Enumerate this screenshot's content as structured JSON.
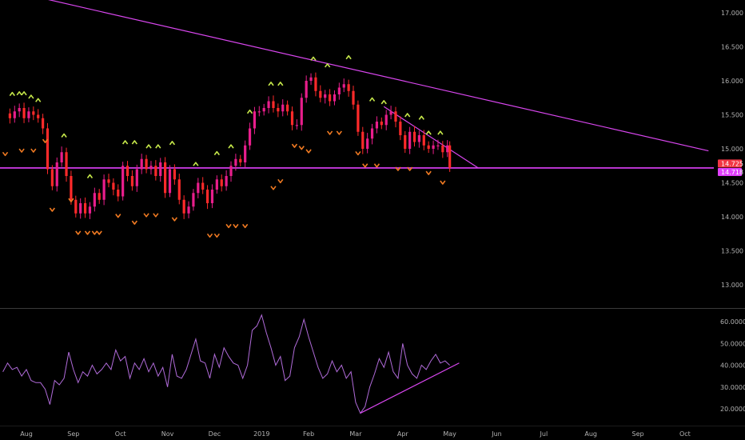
{
  "chart_data": {
    "type": "candlestick",
    "price_axis": {
      "ticks": [
        "17.000",
        "16.500",
        "16.000",
        "15.500",
        "15.000",
        "14.500",
        "14.000",
        "13.500",
        "13.000"
      ],
      "tick_values": [
        17.0,
        16.5,
        16.0,
        15.5,
        15.0,
        14.5,
        14.0,
        13.5,
        13.0
      ],
      "range": [
        12.62,
        17.15
      ]
    },
    "oscillator_axis": {
      "ticks": [
        "60.0000",
        "50.0000",
        "40.0000",
        "30.0000",
        "20.0000"
      ],
      "tick_values": [
        60,
        50,
        40,
        30,
        20
      ],
      "range": [
        14,
        64
      ]
    },
    "time_axis": {
      "labels": [
        "Aug",
        "Sep",
        "Oct",
        "Nov",
        "Dec",
        "2019",
        "Feb",
        "Mar",
        "Apr",
        "May",
        "Jun",
        "Jul",
        "Aug",
        "Sep",
        "Oct"
      ],
      "positions": [
        0,
        1,
        2,
        3,
        4,
        5,
        6,
        7,
        8,
        9,
        10,
        11,
        12,
        13,
        14
      ]
    },
    "price_tags": [
      {
        "label": "14.725",
        "value": 14.725,
        "color": "#f23645"
      },
      {
        "label": "14.718",
        "value": 14.718,
        "color": "#e040fb"
      }
    ],
    "horizontal_line": {
      "value": 14.718,
      "color": "#e040fb"
    },
    "price_series": [
      {
        "t": -0.45,
        "c": 15.52
      },
      {
        "t": -0.35,
        "c": 15.45
      },
      {
        "t": -0.25,
        "c": 15.55
      },
      {
        "t": -0.15,
        "c": 15.6
      },
      {
        "t": -0.05,
        "c": 15.45
      },
      {
        "t": 0.05,
        "c": 15.55
      },
      {
        "t": 0.15,
        "c": 15.5
      },
      {
        "t": 0.25,
        "c": 15.45
      },
      {
        "t": 0.35,
        "c": 15.3
      },
      {
        "t": 0.45,
        "c": 14.7
      },
      {
        "t": 0.55,
        "c": 14.45
      },
      {
        "t": 0.65,
        "c": 14.8
      },
      {
        "t": 0.75,
        "c": 14.95
      },
      {
        "t": 0.85,
        "c": 14.6
      },
      {
        "t": 0.95,
        "c": 14.25
      },
      {
        "t": 1.05,
        "c": 14.05
      },
      {
        "t": 1.15,
        "c": 14.2
      },
      {
        "t": 1.25,
        "c": 14.05
      },
      {
        "t": 1.35,
        "c": 14.15
      },
      {
        "t": 1.45,
        "c": 14.35
      },
      {
        "t": 1.55,
        "c": 14.25
      },
      {
        "t": 1.65,
        "c": 14.55
      },
      {
        "t": 1.75,
        "c": 14.5
      },
      {
        "t": 1.85,
        "c": 14.4
      },
      {
        "t": 1.95,
        "c": 14.3
      },
      {
        "t": 2.05,
        "c": 14.75
      },
      {
        "t": 2.15,
        "c": 14.6
      },
      {
        "t": 2.25,
        "c": 14.45
      },
      {
        "t": 2.35,
        "c": 14.7
      },
      {
        "t": 2.45,
        "c": 14.85
      },
      {
        "t": 2.55,
        "c": 14.7
      },
      {
        "t": 2.65,
        "c": 14.75
      },
      {
        "t": 2.75,
        "c": 14.6
      },
      {
        "t": 2.85,
        "c": 14.8
      },
      {
        "t": 2.95,
        "c": 14.35
      },
      {
        "t": 3.05,
        "c": 14.7
      },
      {
        "t": 3.15,
        "c": 14.55
      },
      {
        "t": 3.25,
        "c": 14.25
      },
      {
        "t": 3.35,
        "c": 14.05
      },
      {
        "t": 3.45,
        "c": 14.15
      },
      {
        "t": 3.55,
        "c": 14.35
      },
      {
        "t": 3.65,
        "c": 14.5
      },
      {
        "t": 3.75,
        "c": 14.4
      },
      {
        "t": 3.85,
        "c": 14.2
      },
      {
        "t": 3.95,
        "c": 14.4
      },
      {
        "t": 4.05,
        "c": 14.55
      },
      {
        "t": 4.15,
        "c": 14.45
      },
      {
        "t": 4.25,
        "c": 14.6
      },
      {
        "t": 4.35,
        "c": 14.75
      },
      {
        "t": 4.45,
        "c": 14.85
      },
      {
        "t": 4.55,
        "c": 14.8
      },
      {
        "t": 4.65,
        "c": 15.05
      },
      {
        "t": 4.75,
        "c": 15.3
      },
      {
        "t": 4.85,
        "c": 15.55
      },
      {
        "t": 4.95,
        "c": 15.55
      },
      {
        "t": 5.05,
        "c": 15.6
      },
      {
        "t": 5.15,
        "c": 15.7
      },
      {
        "t": 5.25,
        "c": 15.6
      },
      {
        "t": 5.35,
        "c": 15.55
      },
      {
        "t": 5.45,
        "c": 15.65
      },
      {
        "t": 5.55,
        "c": 15.55
      },
      {
        "t": 5.65,
        "c": 15.35
      },
      {
        "t": 5.75,
        "c": 15.35
      },
      {
        "t": 5.85,
        "c": 15.75
      },
      {
        "t": 5.95,
        "c": 16.0
      },
      {
        "t": 6.05,
        "c": 16.05
      },
      {
        "t": 6.15,
        "c": 15.85
      },
      {
        "t": 6.25,
        "c": 15.75
      },
      {
        "t": 6.35,
        "c": 15.8
      },
      {
        "t": 6.45,
        "c": 15.7
      },
      {
        "t": 6.55,
        "c": 15.8
      },
      {
        "t": 6.65,
        "c": 15.9
      },
      {
        "t": 6.75,
        "c": 15.95
      },
      {
        "t": 6.85,
        "c": 15.85
      },
      {
        "t": 6.95,
        "c": 15.65
      },
      {
        "t": 7.05,
        "c": 15.25
      },
      {
        "t": 7.15,
        "c": 15.0
      },
      {
        "t": 7.25,
        "c": 15.15
      },
      {
        "t": 7.35,
        "c": 15.3
      },
      {
        "t": 7.45,
        "c": 15.4
      },
      {
        "t": 7.55,
        "c": 15.35
      },
      {
        "t": 7.65,
        "c": 15.5
      },
      {
        "t": 7.75,
        "c": 15.55
      },
      {
        "t": 7.85,
        "c": 15.4
      },
      {
        "t": 7.95,
        "c": 15.2
      },
      {
        "t": 8.05,
        "c": 15.0
      },
      {
        "t": 8.15,
        "c": 15.25
      },
      {
        "t": 8.25,
        "c": 15.1
      },
      {
        "t": 8.35,
        "c": 15.2
      },
      {
        "t": 8.45,
        "c": 15.05
      },
      {
        "t": 8.55,
        "c": 15.0
      },
      {
        "t": 8.65,
        "c": 15.05
      },
      {
        "t": 8.75,
        "c": 15.05
      },
      {
        "t": 8.85,
        "c": 14.95
      },
      {
        "t": 8.95,
        "c": 15.05
      },
      {
        "t": 9.0,
        "c": 14.72
      }
    ],
    "oscillator_series": [
      {
        "t": -0.5,
        "v": 37
      },
      {
        "t": -0.4,
        "v": 41
      },
      {
        "t": -0.3,
        "v": 38
      },
      {
        "t": -0.2,
        "v": 39
      },
      {
        "t": -0.1,
        "v": 35
      },
      {
        "t": 0.0,
        "v": 38
      },
      {
        "t": 0.1,
        "v": 33
      },
      {
        "t": 0.2,
        "v": 32
      },
      {
        "t": 0.3,
        "v": 32
      },
      {
        "t": 0.4,
        "v": 29
      },
      {
        "t": 0.5,
        "v": 22
      },
      {
        "t": 0.6,
        "v": 33
      },
      {
        "t": 0.7,
        "v": 31
      },
      {
        "t": 0.8,
        "v": 34
      },
      {
        "t": 0.9,
        "v": 46
      },
      {
        "t": 1.0,
        "v": 38
      },
      {
        "t": 1.1,
        "v": 32
      },
      {
        "t": 1.2,
        "v": 37
      },
      {
        "t": 1.3,
        "v": 35
      },
      {
        "t": 1.4,
        "v": 40
      },
      {
        "t": 1.5,
        "v": 36
      },
      {
        "t": 1.6,
        "v": 38
      },
      {
        "t": 1.7,
        "v": 41
      },
      {
        "t": 1.8,
        "v": 38
      },
      {
        "t": 1.9,
        "v": 47
      },
      {
        "t": 2.0,
        "v": 42
      },
      {
        "t": 2.1,
        "v": 44
      },
      {
        "t": 2.2,
        "v": 34
      },
      {
        "t": 2.3,
        "v": 41
      },
      {
        "t": 2.4,
        "v": 38
      },
      {
        "t": 2.5,
        "v": 43
      },
      {
        "t": 2.6,
        "v": 37
      },
      {
        "t": 2.7,
        "v": 41
      },
      {
        "t": 2.8,
        "v": 35
      },
      {
        "t": 2.9,
        "v": 39
      },
      {
        "t": 3.0,
        "v": 30
      },
      {
        "t": 3.1,
        "v": 45
      },
      {
        "t": 3.2,
        "v": 35
      },
      {
        "t": 3.3,
        "v": 34
      },
      {
        "t": 3.4,
        "v": 38
      },
      {
        "t": 3.5,
        "v": 45
      },
      {
        "t": 3.6,
        "v": 52
      },
      {
        "t": 3.7,
        "v": 42
      },
      {
        "t": 3.8,
        "v": 41
      },
      {
        "t": 3.9,
        "v": 34
      },
      {
        "t": 4.0,
        "v": 45
      },
      {
        "t": 4.1,
        "v": 39
      },
      {
        "t": 4.2,
        "v": 48
      },
      {
        "t": 4.3,
        "v": 44
      },
      {
        "t": 4.4,
        "v": 41
      },
      {
        "t": 4.5,
        "v": 40
      },
      {
        "t": 4.6,
        "v": 34
      },
      {
        "t": 4.7,
        "v": 40
      },
      {
        "t": 4.8,
        "v": 56
      },
      {
        "t": 4.9,
        "v": 58
      },
      {
        "t": 5.0,
        "v": 63
      },
      {
        "t": 5.1,
        "v": 55
      },
      {
        "t": 5.2,
        "v": 48
      },
      {
        "t": 5.3,
        "v": 40
      },
      {
        "t": 5.4,
        "v": 44
      },
      {
        "t": 5.5,
        "v": 33
      },
      {
        "t": 5.6,
        "v": 35
      },
      {
        "t": 5.7,
        "v": 48
      },
      {
        "t": 5.8,
        "v": 53
      },
      {
        "t": 5.9,
        "v": 61
      },
      {
        "t": 6.0,
        "v": 53
      },
      {
        "t": 6.1,
        "v": 46
      },
      {
        "t": 6.2,
        "v": 39
      },
      {
        "t": 6.3,
        "v": 34
      },
      {
        "t": 6.4,
        "v": 36
      },
      {
        "t": 6.5,
        "v": 42
      },
      {
        "t": 6.6,
        "v": 37
      },
      {
        "t": 6.7,
        "v": 40
      },
      {
        "t": 6.8,
        "v": 34
      },
      {
        "t": 6.9,
        "v": 37
      },
      {
        "t": 7.0,
        "v": 23
      },
      {
        "t": 7.1,
        "v": 18
      },
      {
        "t": 7.2,
        "v": 21
      },
      {
        "t": 7.3,
        "v": 30
      },
      {
        "t": 7.4,
        "v": 36
      },
      {
        "t": 7.5,
        "v": 43
      },
      {
        "t": 7.6,
        "v": 39
      },
      {
        "t": 7.7,
        "v": 46
      },
      {
        "t": 7.8,
        "v": 37
      },
      {
        "t": 7.9,
        "v": 34
      },
      {
        "t": 8.0,
        "v": 50
      },
      {
        "t": 8.1,
        "v": 40
      },
      {
        "t": 8.2,
        "v": 36
      },
      {
        "t": 8.3,
        "v": 34
      },
      {
        "t": 8.4,
        "v": 40
      },
      {
        "t": 8.5,
        "v": 38
      },
      {
        "t": 8.6,
        "v": 42
      },
      {
        "t": 8.7,
        "v": 45
      },
      {
        "t": 8.8,
        "v": 41
      },
      {
        "t": 8.9,
        "v": 42
      },
      {
        "t": 9.0,
        "v": 40
      }
    ],
    "up_markers": [
      {
        "t": -0.3,
        "v": 15.81
      },
      {
        "t": -0.15,
        "v": 15.82
      },
      {
        "t": -0.05,
        "v": 15.82
      },
      {
        "t": 0.1,
        "v": 15.77
      },
      {
        "t": 0.25,
        "v": 15.72
      },
      {
        "t": 0.8,
        "v": 15.2
      },
      {
        "t": 1.35,
        "v": 14.6
      },
      {
        "t": 2.1,
        "v": 15.1
      },
      {
        "t": 2.3,
        "v": 15.1
      },
      {
        "t": 2.6,
        "v": 15.04
      },
      {
        "t": 2.8,
        "v": 15.04
      },
      {
        "t": 3.1,
        "v": 15.09
      },
      {
        "t": 3.6,
        "v": 14.78
      },
      {
        "t": 4.05,
        "v": 14.94
      },
      {
        "t": 4.35,
        "v": 15.04
      },
      {
        "t": 4.75,
        "v": 15.55
      },
      {
        "t": 5.2,
        "v": 15.96
      },
      {
        "t": 5.4,
        "v": 15.96
      },
      {
        "t": 6.1,
        "v": 16.33
      },
      {
        "t": 6.4,
        "v": 16.23
      },
      {
        "t": 6.85,
        "v": 16.35
      },
      {
        "t": 7.35,
        "v": 15.73
      },
      {
        "t": 7.6,
        "v": 15.69
      },
      {
        "t": 8.1,
        "v": 15.5
      },
      {
        "t": 8.4,
        "v": 15.46
      },
      {
        "t": 8.55,
        "v": 15.24
      },
      {
        "t": 8.8,
        "v": 15.24
      }
    ],
    "down_markers": [
      {
        "t": -0.45,
        "v": 14.92
      },
      {
        "t": -0.1,
        "v": 14.97
      },
      {
        "t": 0.15,
        "v": 14.97
      },
      {
        "t": 0.4,
        "v": 15.11
      },
      {
        "t": 0.55,
        "v": 14.1
      },
      {
        "t": 0.95,
        "v": 14.24
      },
      {
        "t": 1.1,
        "v": 13.76
      },
      {
        "t": 1.3,
        "v": 13.76
      },
      {
        "t": 1.45,
        "v": 13.76
      },
      {
        "t": 1.55,
        "v": 13.76
      },
      {
        "t": 1.95,
        "v": 14.01
      },
      {
        "t": 2.3,
        "v": 13.91
      },
      {
        "t": 2.55,
        "v": 14.02
      },
      {
        "t": 2.75,
        "v": 14.02
      },
      {
        "t": 3.15,
        "v": 13.96
      },
      {
        "t": 3.9,
        "v": 13.72
      },
      {
        "t": 4.05,
        "v": 13.72
      },
      {
        "t": 4.3,
        "v": 13.86
      },
      {
        "t": 4.45,
        "v": 13.86
      },
      {
        "t": 4.65,
        "v": 13.86
      },
      {
        "t": 5.25,
        "v": 14.42
      },
      {
        "t": 5.4,
        "v": 14.52
      },
      {
        "t": 5.7,
        "v": 15.04
      },
      {
        "t": 5.85,
        "v": 15.01
      },
      {
        "t": 6.0,
        "v": 14.96
      },
      {
        "t": 6.45,
        "v": 15.23
      },
      {
        "t": 6.65,
        "v": 15.23
      },
      {
        "t": 7.05,
        "v": 14.93
      },
      {
        "t": 7.2,
        "v": 14.75
      },
      {
        "t": 7.45,
        "v": 14.75
      },
      {
        "t": 7.9,
        "v": 14.7
      },
      {
        "t": 8.15,
        "v": 14.7
      },
      {
        "t": 8.55,
        "v": 14.64
      },
      {
        "t": 8.85,
        "v": 14.5
      }
    ],
    "trendlines": [
      {
        "name": "long-resistance",
        "from": {
          "t": -0.2,
          "v": 17.3
        },
        "to": {
          "t": 14.5,
          "v": 14.97
        },
        "color": "#d946ef"
      },
      {
        "name": "short-resistance",
        "from": {
          "t": 7.6,
          "v": 15.62
        },
        "to": {
          "t": 9.6,
          "v": 14.72
        },
        "color": "#d946ef"
      }
    ],
    "oscillator_trendline": {
      "from": {
        "t": 7.1,
        "v": 18
      },
      "to": {
        "t": 9.2,
        "v": 41
      },
      "color": "#d946ef"
    },
    "colors": {
      "background": "#000000",
      "bull": "#e91e8c",
      "bear": "#ff2a2a",
      "up_marker": "#c6e84a",
      "down_marker": "#f07a22",
      "oscillator_line": "#b06bd9",
      "axis_text": "#b2b2b2",
      "separator": "#3a3a3a"
    }
  }
}
